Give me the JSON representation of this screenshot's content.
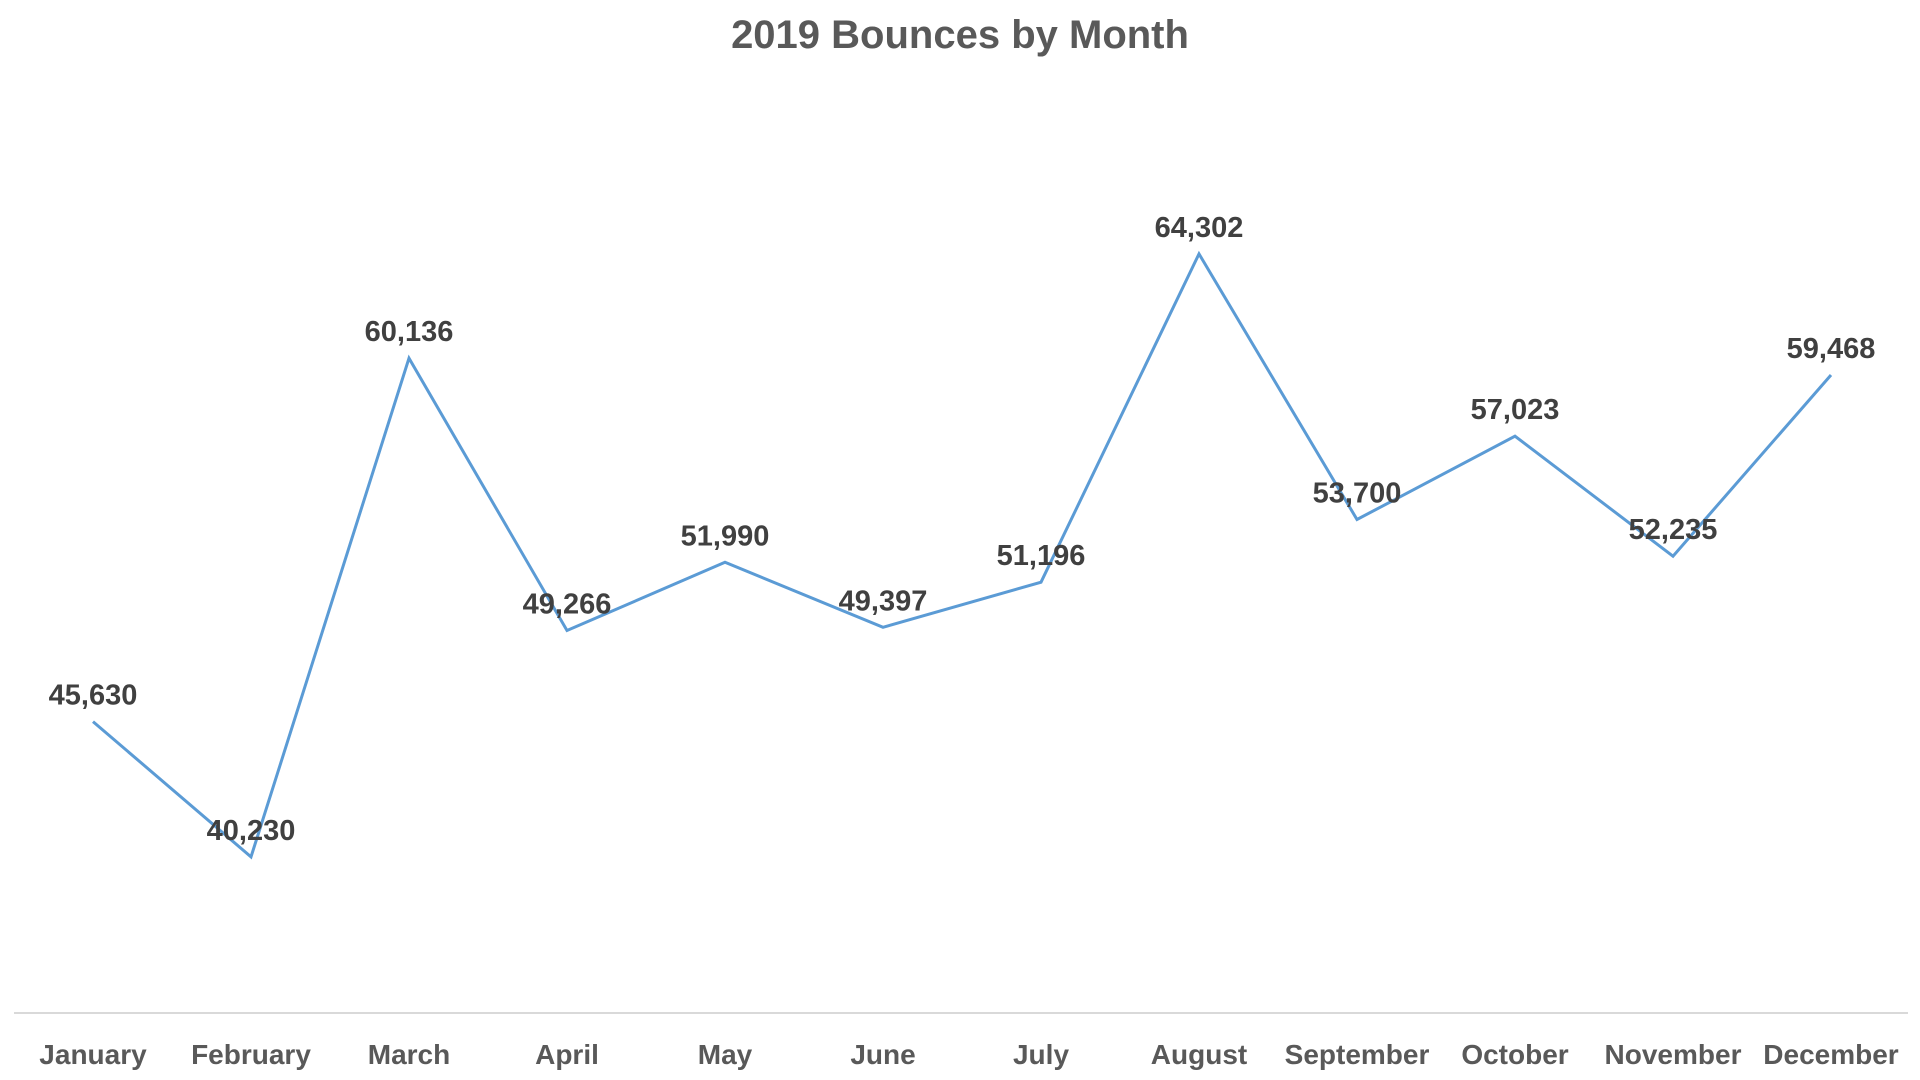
{
  "chart_data": {
    "type": "line",
    "title": "2019 Bounces by Month",
    "xlabel": "",
    "ylabel": "",
    "categories": [
      "January",
      "February",
      "March",
      "April",
      "May",
      "June",
      "July",
      "August",
      "September",
      "October",
      "November",
      "December"
    ],
    "series": [
      {
        "values": [
          45630,
          40230,
          60136,
          49266,
          51990,
          49397,
          51196,
          64302,
          53700,
          57023,
          52235,
          59468
        ],
        "labels": [
          "45,630",
          "40,230",
          "60,136",
          "49,266",
          "51,990",
          "49,397",
          "51,196",
          "64,302",
          "53,700",
          "57,023",
          "52,235",
          "59,468"
        ]
      }
    ],
    "ylim": [
      34000,
      72000
    ],
    "grid": false,
    "legend": "none",
    "data_labels": true,
    "line_color": "#5B9BD5",
    "axis_color": "#D9D9D9",
    "text_color": "#595959",
    "label_color": "#404040"
  }
}
